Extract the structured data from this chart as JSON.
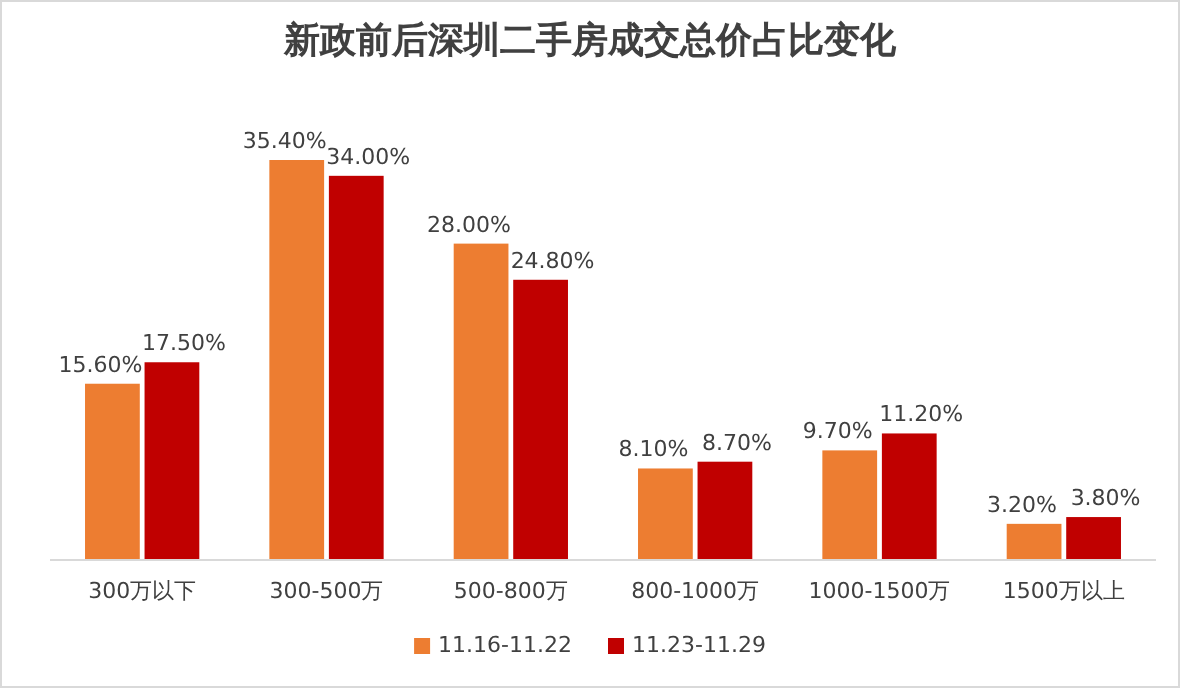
{
  "chart_data": {
    "type": "bar",
    "title": "新政前后深圳二手房成交总价占比变化",
    "categories": [
      "300万以下",
      "300-500万",
      "500-800万",
      "800-1000万",
      "1000-1500万",
      "1500万以上"
    ],
    "series": [
      {
        "name": "11.16-11.22",
        "color": "#ed7d31",
        "values": [
          15.6,
          35.4,
          28.0,
          8.1,
          9.7,
          3.2
        ],
        "value_labels": [
          "15.60%",
          "35.40%",
          "28.00%",
          "8.10%",
          "9.70%",
          "3.20%"
        ]
      },
      {
        "name": "11.23-11.29",
        "color": "#c00000",
        "values": [
          17.5,
          34.0,
          24.8,
          8.7,
          11.2,
          3.8
        ],
        "value_labels": [
          "17.50%",
          "34.00%",
          "24.80%",
          "8.70%",
          "11.20%",
          "3.80%"
        ]
      }
    ],
    "legend": "bottom",
    "grid": false
  }
}
